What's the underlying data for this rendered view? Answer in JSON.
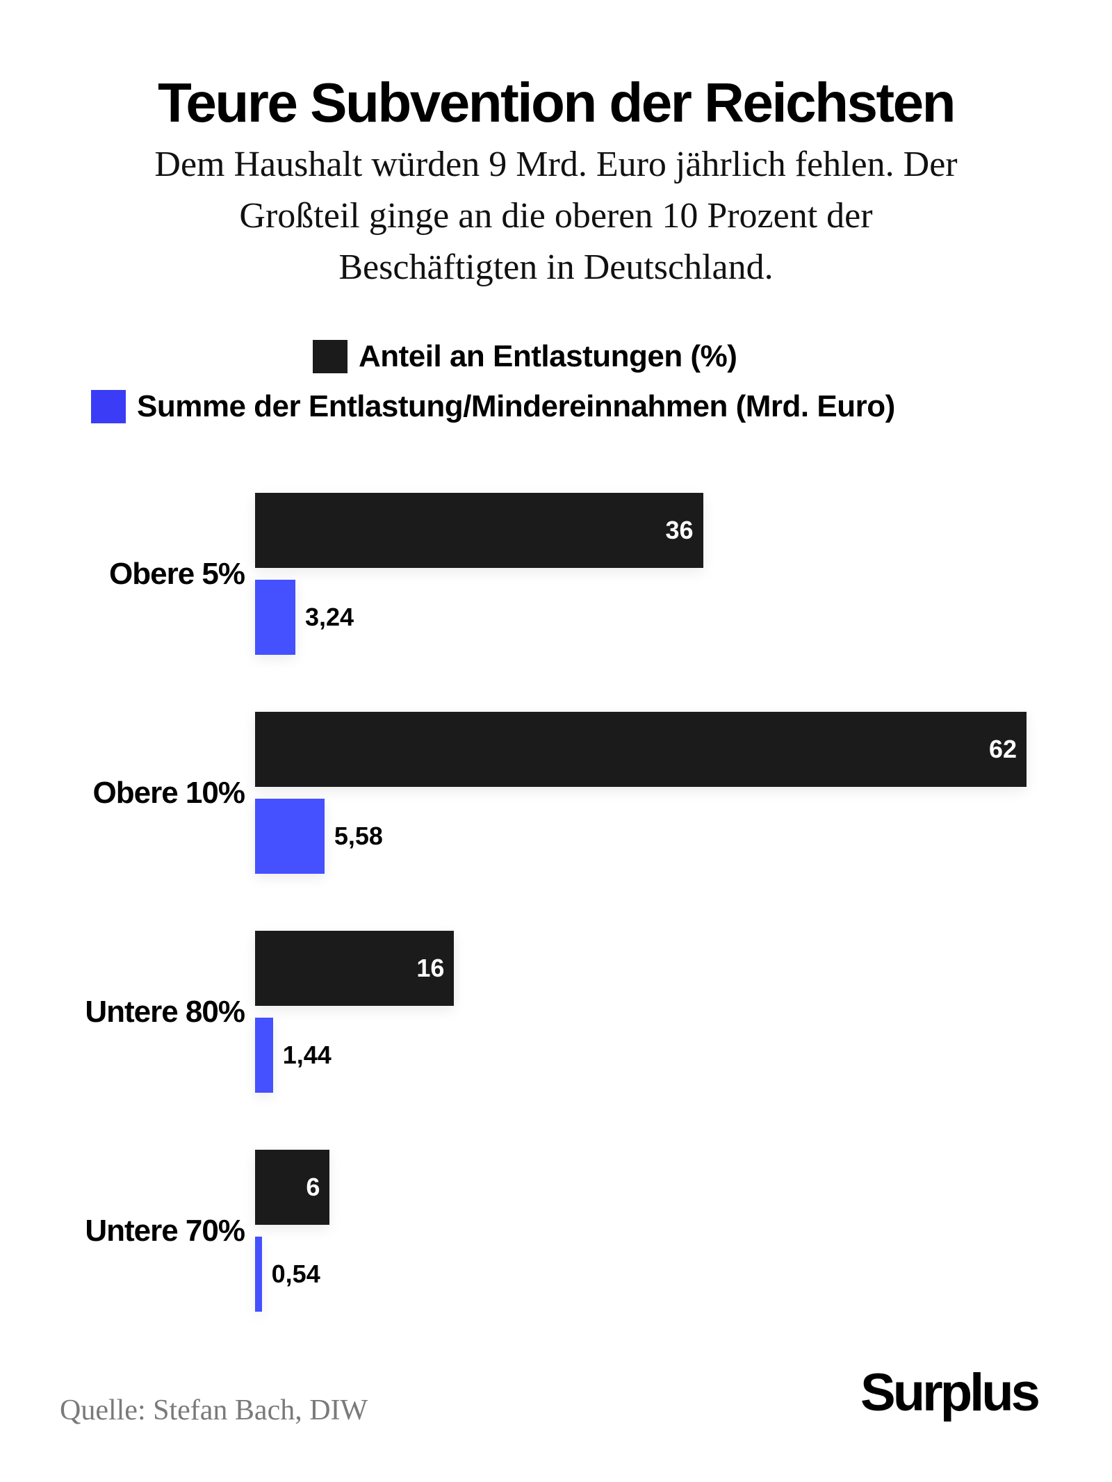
{
  "title": "Teure Subvention der Reichsten",
  "subtitle_lines": [
    "Dem Haushalt würden 9 Mrd. Euro jährlich fehlen. Der",
    "Großteil ginge an die oberen 10 Prozent der",
    "Beschäftigten in Deutschland."
  ],
  "colors": {
    "share": "#1b1b1b",
    "sum": "#4550ff",
    "legend_sum": "#3a3df5"
  },
  "chart_data": {
    "type": "bar",
    "orientation": "horizontal",
    "title": "Teure Subvention der Reichsten",
    "categories": [
      "Obere 5%",
      "Obere 10%",
      "Untere 80%",
      "Untere 70%"
    ],
    "series": [
      {
        "name": "Anteil an Entlastungen (%)",
        "values": [
          36,
          62,
          16,
          6
        ],
        "labels": [
          "36",
          "62",
          "16",
          "6"
        ]
      },
      {
        "name": "Summe der Entlastung/Mindereinnahmen (Mrd. Euro)",
        "values": [
          3.24,
          5.58,
          1.44,
          0.54
        ],
        "labels": [
          "3,24",
          "5,58",
          "1,44",
          "0,54"
        ]
      }
    ],
    "legend": "top",
    "grid": false,
    "xlim": [
      0,
      62
    ]
  },
  "source": "Quelle: Stefan Bach, DIW",
  "logo": "Surplus"
}
